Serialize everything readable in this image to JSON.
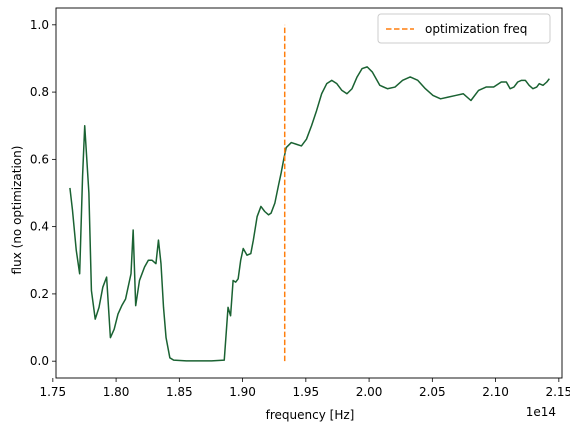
{
  "chart_data": {
    "type": "line",
    "xlabel": "frequency [Hz]",
    "ylabel": "flux (no optimization)",
    "x_offset_label": "1e14",
    "xlim": [
      1.7525,
      2.1525
    ],
    "ylim": [
      -0.05,
      1.05
    ],
    "grid": false,
    "legend_position": "top-right",
    "xticks": [
      1.75,
      1.8,
      1.85,
      1.9,
      1.95,
      2.0,
      2.05,
      2.1,
      2.15
    ],
    "xtick_labels": [
      "1.75",
      "1.80",
      "1.85",
      "1.90",
      "1.95",
      "2.00",
      "2.05",
      "2.10",
      "2.15"
    ],
    "yticks": [
      0.0,
      0.2,
      0.4,
      0.6,
      0.8,
      1.0
    ],
    "ytick_labels": [
      "0.0",
      "0.2",
      "0.4",
      "0.6",
      "0.8",
      "1.0"
    ],
    "series": [
      {
        "style": "solid",
        "color": "#1a6232",
        "x": [
          1.7635,
          1.7655,
          1.7685,
          1.7712,
          1.7735,
          1.7752,
          1.7785,
          1.7805,
          1.7835,
          1.7865,
          1.7895,
          1.7925,
          1.7955,
          1.7985,
          1.8015,
          1.8045,
          1.8075,
          1.8095,
          1.8118,
          1.8135,
          1.8155,
          1.8185,
          1.8225,
          1.8255,
          1.8285,
          1.8315,
          1.8335,
          1.8355,
          1.8375,
          1.8395,
          1.8425,
          1.8455,
          1.8555,
          1.8655,
          1.8755,
          1.8855,
          1.8885,
          1.8905,
          1.8925,
          1.8945,
          1.8965,
          1.8985,
          1.9005,
          1.9035,
          1.9065,
          1.9085,
          1.9115,
          1.9145,
          1.9175,
          1.9205,
          1.9225,
          1.9255,
          1.9285,
          1.9305,
          1.9325,
          1.9345,
          1.9385,
          1.9425,
          1.9465,
          1.9505,
          1.9545,
          1.9585,
          1.9625,
          1.9665,
          1.9705,
          1.9745,
          1.9785,
          1.9825,
          1.9865,
          1.9905,
          1.9945,
          1.9985,
          2.0025,
          2.0085,
          2.0145,
          2.0205,
          2.0265,
          2.0325,
          2.0385,
          2.0445,
          2.0505,
          2.0565,
          2.0625,
          2.0685,
          2.0745,
          2.0805,
          2.0865,
          2.0925,
          2.0985,
          2.1045,
          2.1085,
          2.1115,
          2.1145,
          2.1175,
          2.1205,
          2.1235,
          2.1265,
          2.1295,
          2.1325,
          2.1345,
          2.1375,
          2.1405,
          2.1425
        ],
        "y": [
          0.515,
          0.45,
          0.33,
          0.26,
          0.55,
          0.7,
          0.5,
          0.21,
          0.125,
          0.16,
          0.22,
          0.25,
          0.07,
          0.095,
          0.14,
          0.165,
          0.185,
          0.22,
          0.26,
          0.39,
          0.165,
          0.24,
          0.28,
          0.3,
          0.3,
          0.29,
          0.36,
          0.29,
          0.16,
          0.07,
          0.01,
          0.003,
          0.001,
          0.001,
          0.001,
          0.003,
          0.16,
          0.135,
          0.24,
          0.235,
          0.245,
          0.3,
          0.335,
          0.315,
          0.32,
          0.36,
          0.43,
          0.46,
          0.445,
          0.435,
          0.44,
          0.47,
          0.525,
          0.56,
          0.6,
          0.635,
          0.65,
          0.645,
          0.64,
          0.66,
          0.7,
          0.745,
          0.795,
          0.825,
          0.835,
          0.825,
          0.805,
          0.795,
          0.81,
          0.845,
          0.87,
          0.875,
          0.86,
          0.82,
          0.81,
          0.815,
          0.835,
          0.845,
          0.835,
          0.81,
          0.79,
          0.78,
          0.785,
          0.79,
          0.795,
          0.775,
          0.805,
          0.815,
          0.815,
          0.83,
          0.83,
          0.81,
          0.815,
          0.83,
          0.835,
          0.835,
          0.82,
          0.81,
          0.815,
          0.825,
          0.82,
          0.83,
          0.84
        ]
      },
      {
        "name": "optimization freq",
        "style": "dashed",
        "color": "#ff7f0e",
        "x": [
          1.9333,
          1.9333
        ],
        "y": [
          0.0,
          1.0
        ]
      }
    ]
  }
}
